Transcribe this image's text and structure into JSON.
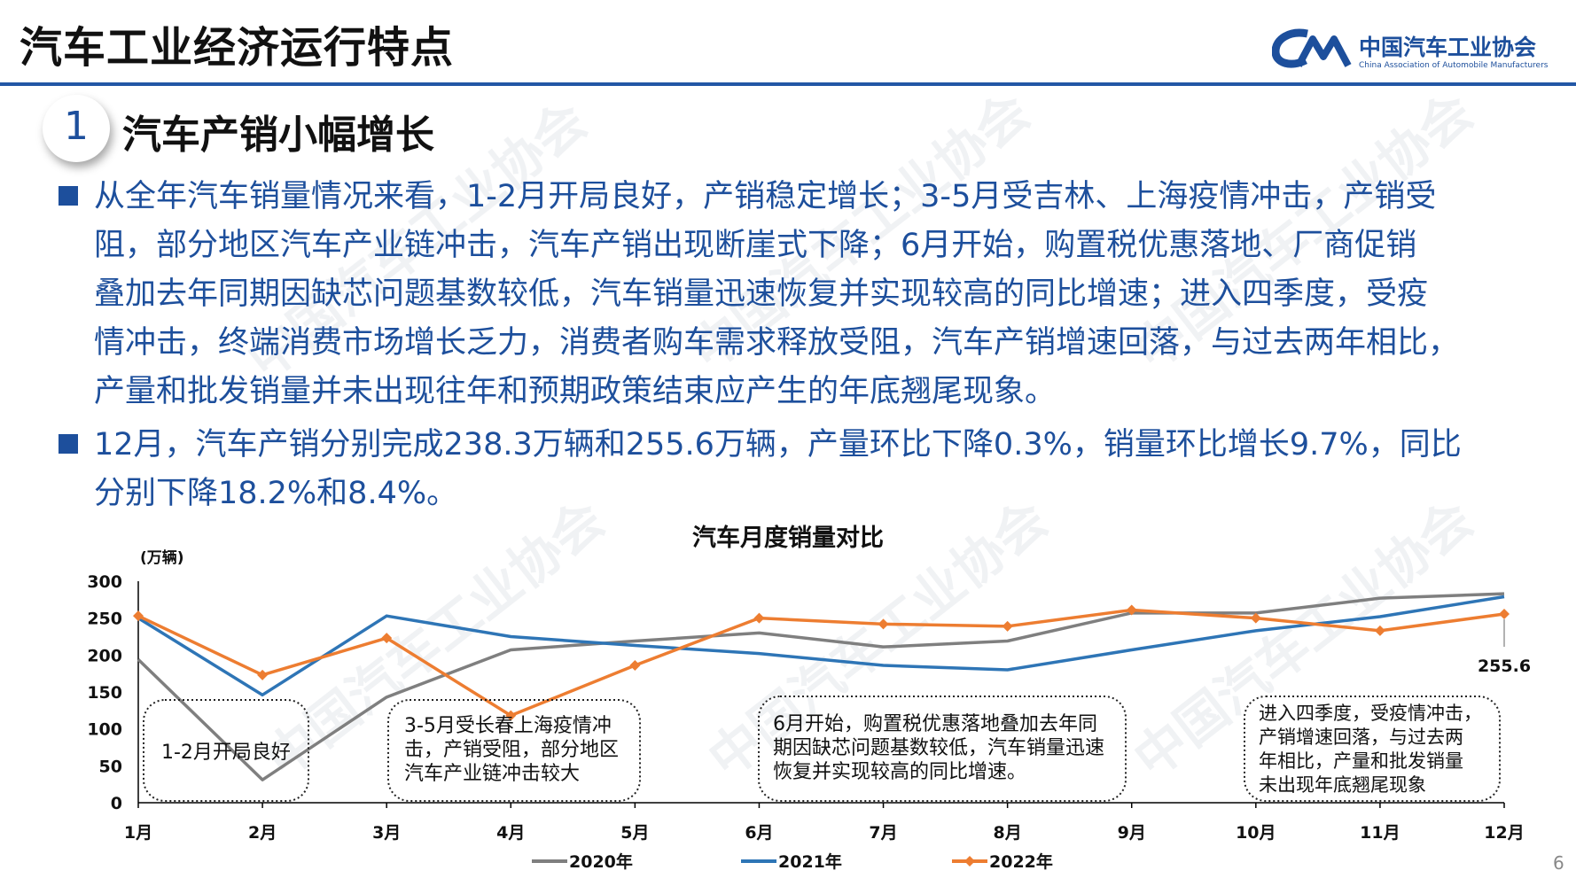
{
  "header": {
    "title": "汽车工业经济运行特点",
    "logo_cn": "中国汽车工业协会",
    "logo_en": "China Association of Automobile Manufacturers",
    "accent_color": "#2257a5"
  },
  "section": {
    "number": "1",
    "title": "汽车产销小幅增长"
  },
  "paragraphs": [
    {
      "lines": [
        "从全年汽车销量情况来看，1-2月开局良好，产销稳定增长；3-5月受吉林、上海疫情冲击，产销受",
        "阻，部分地区汽车产业链冲击，汽车产销出现断崖式下降；6月开始，购置税优惠落地、厂商促销",
        "叠加去年同期因缺芯问题基数较低，汽车销量迅速恢复并实现较高的同比增速；进入四季度，受疫",
        "情冲击，终端消费市场增长乏力，消费者购车需求释放受阻，汽车产销增速回落，与过去两年相比，",
        "产量和批发销量并未出现往年和预期政策结束应产生的年底翘尾现象。"
      ]
    },
    {
      "lines": [
        "12月，汽车产销分别完成238.3万辆和255.6万辆，产量环比下降0.3%，销量环比增长9.7%，同比",
        "分别下降18.2%和8.4%。"
      ]
    }
  ],
  "chart_data": {
    "type": "line",
    "title": "汽车月度销量对比",
    "ylabel": "(万辆)",
    "ylim": [
      0,
      300
    ],
    "yticks": [
      0,
      50,
      100,
      150,
      200,
      250,
      300
    ],
    "categories": [
      "1月",
      "2月",
      "3月",
      "4月",
      "5月",
      "6月",
      "7月",
      "8月",
      "9月",
      "10月",
      "11月",
      "12月"
    ],
    "series": [
      {
        "name": "2020年",
        "color": "#7f7f7f",
        "marker": false,
        "values": [
          194,
          31,
          143,
          207,
          219,
          230,
          211,
          219,
          257,
          257,
          277,
          283
        ]
      },
      {
        "name": "2021年",
        "color": "#2e75b6",
        "marker": false,
        "values": [
          250,
          146,
          253,
          225,
          213,
          202,
          186,
          180,
          207,
          233,
          252,
          279
        ]
      },
      {
        "name": "2022年",
        "color": "#ed7d31",
        "marker": true,
        "values": [
          253,
          173,
          223,
          118,
          186,
          250,
          242,
          239,
          261,
          250,
          233,
          255.6
        ]
      }
    ],
    "data_label": "255.6",
    "annotations": [
      {
        "text": [
          "1-2月开局良好"
        ]
      },
      {
        "text": [
          "3-5月受长春上海疫情冲",
          "击，产销受阻，部分地区",
          "汽车产业链冲击较大"
        ]
      },
      {
        "text": [
          "6月开始，购置税优惠落地叠加去年同",
          "期因缺芯问题基数较低，汽车销量迅速",
          "恢复并实现较高的同比增速。"
        ]
      },
      {
        "text": [
          "进入四季度，受疫情冲击，",
          "产销增速回落，与过去两",
          "年相比，产量和批发销量",
          "未出现年底翘尾现象"
        ]
      }
    ],
    "legend_position": "bottom",
    "grid": false
  },
  "page_number": "6"
}
